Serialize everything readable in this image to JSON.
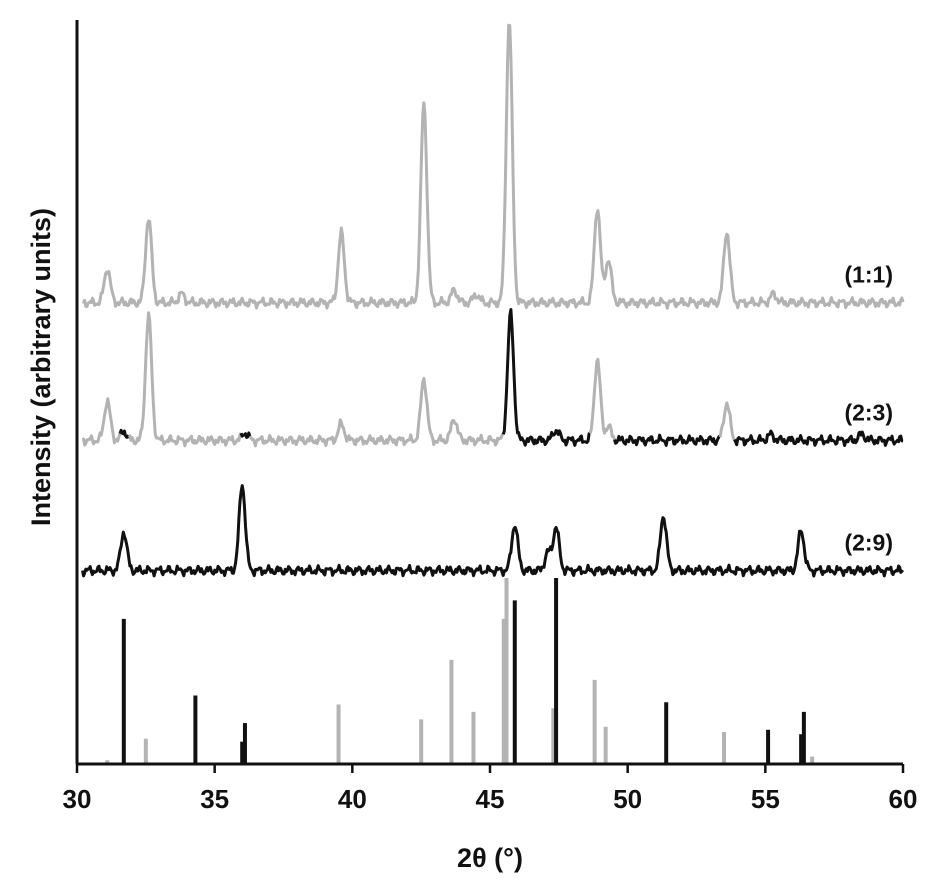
{
  "chart_data": {
    "type": "line",
    "xlabel": "2θ (°)",
    "ylabel": "Intensity (arbitrary units)",
    "xlim": [
      30,
      60
    ],
    "x_ticks": [
      "30",
      "35",
      "40",
      "45",
      "50",
      "55",
      "60"
    ],
    "y_ticks": "none",
    "grid": false,
    "colors": {
      "gray": "#b3b3b3",
      "black": "#111111"
    },
    "patterns": [
      {
        "label": "(1:1)",
        "baseline": 0.62,
        "color": "gray",
        "peaks": [
          {
            "x": 31.1,
            "h": 0.046
          },
          {
            "x": 32.6,
            "h": 0.115
          },
          {
            "x": 33.8,
            "h": 0.012
          },
          {
            "x": 39.6,
            "h": 0.094
          },
          {
            "x": 42.6,
            "h": 0.268
          },
          {
            "x": 43.7,
            "h": 0.017
          },
          {
            "x": 44.5,
            "h": 0.011
          },
          {
            "x": 45.7,
            "h": 0.38
          },
          {
            "x": 48.9,
            "h": 0.128
          },
          {
            "x": 49.3,
            "h": 0.058
          },
          {
            "x": 53.6,
            "h": 0.096
          },
          {
            "x": 55.3,
            "h": 0.012
          }
        ]
      },
      {
        "label": "(2:3)",
        "baseline": 0.435,
        "color": "mixed",
        "peaks": [
          {
            "x": 31.1,
            "h": 0.053,
            "c": "gray"
          },
          {
            "x": 31.7,
            "h": 0.012,
            "c": "black"
          },
          {
            "x": 32.6,
            "h": 0.168,
            "c": "gray"
          },
          {
            "x": 36.1,
            "h": 0.01,
            "c": "black"
          },
          {
            "x": 39.6,
            "h": 0.022,
            "c": "gray"
          },
          {
            "x": 42.6,
            "h": 0.083,
            "c": "gray"
          },
          {
            "x": 43.7,
            "h": 0.029,
            "c": "gray"
          },
          {
            "x": 45.75,
            "h": 0.17,
            "c": "black"
          },
          {
            "x": 47.4,
            "h": 0.014,
            "c": "black"
          },
          {
            "x": 48.9,
            "h": 0.108,
            "c": "gray"
          },
          {
            "x": 49.3,
            "h": 0.018,
            "c": "gray"
          },
          {
            "x": 53.6,
            "h": 0.05,
            "c": "gray"
          },
          {
            "x": 55.2,
            "h": 0.008,
            "c": "black"
          },
          {
            "x": 58.5,
            "h": 0.008,
            "c": "black"
          }
        ]
      },
      {
        "label": "(2:9)",
        "baseline": 0.26,
        "color": "black",
        "peaks": [
          {
            "x": 31.7,
            "h": 0.052
          },
          {
            "x": 36.0,
            "h": 0.116
          },
          {
            "x": 45.9,
            "h": 0.062
          },
          {
            "x": 47.1,
            "h": 0.024
          },
          {
            "x": 47.4,
            "h": 0.058
          },
          {
            "x": 51.3,
            "h": 0.074
          },
          {
            "x": 56.3,
            "h": 0.054
          }
        ]
      }
    ],
    "reference_lines_gray": [
      {
        "x": 31.1,
        "h": 0.005
      },
      {
        "x": 32.5,
        "h": 0.034
      },
      {
        "x": 39.5,
        "h": 0.08
      },
      {
        "x": 42.5,
        "h": 0.06
      },
      {
        "x": 43.6,
        "h": 0.14
      },
      {
        "x": 44.4,
        "h": 0.07
      },
      {
        "x": 45.5,
        "h": 0.195
      },
      {
        "x": 45.6,
        "h": 0.25
      },
      {
        "x": 47.3,
        "h": 0.075
      },
      {
        "x": 48.8,
        "h": 0.113
      },
      {
        "x": 49.2,
        "h": 0.05
      },
      {
        "x": 53.5,
        "h": 0.043
      },
      {
        "x": 56.7,
        "h": 0.01
      }
    ],
    "reference_lines_black": [
      {
        "x": 31.7,
        "h": 0.195
      },
      {
        "x": 34.3,
        "h": 0.092
      },
      {
        "x": 36.1,
        "h": 0.055
      },
      {
        "x": 36.0,
        "h": 0.03
      },
      {
        "x": 45.9,
        "h": 0.22
      },
      {
        "x": 47.4,
        "h": 0.25
      },
      {
        "x": 51.4,
        "h": 0.083
      },
      {
        "x": 55.1,
        "h": 0.046
      },
      {
        "x": 56.4,
        "h": 0.07
      },
      {
        "x": 56.3,
        "h": 0.04
      }
    ]
  }
}
